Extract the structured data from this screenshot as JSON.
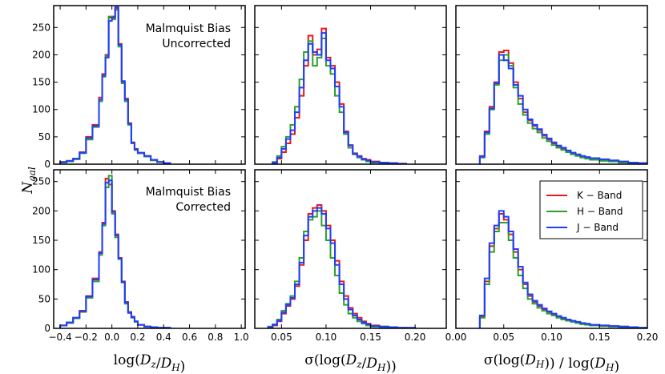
{
  "figure": {
    "ylabel": "N_gal",
    "annotations": {
      "top": [
        "Malmquist Bias",
        "Uncorrected"
      ],
      "bottom": [
        "Malmquist Bias",
        "Corrected"
      ]
    },
    "legend": {
      "placement": "upper-right of bottom-right panel",
      "entries": [
        {
          "label": "K − Band",
          "color": "#e41a1c"
        },
        {
          "label": "H − Band",
          "color": "#2ca02c"
        },
        {
          "label": "J − Band",
          "color": "#1f3dff"
        }
      ]
    }
  },
  "chart_data": [
    {
      "type": "histogram",
      "panel": "top-left",
      "xlabel": "",
      "ylabel": "N_gal",
      "xlim": [
        -0.45,
        1.03
      ],
      "ylim": [
        0,
        290
      ],
      "yticks": [
        0,
        50,
        100,
        150,
        200,
        250
      ],
      "bin_edges": [
        -0.4,
        -0.35,
        -0.3,
        -0.25,
        -0.2,
        -0.15,
        -0.1,
        -0.075,
        -0.05,
        -0.025,
        0.0,
        0.025,
        0.05,
        0.075,
        0.1,
        0.125,
        0.15,
        0.175,
        0.2,
        0.25,
        0.3,
        0.35,
        0.4,
        0.45
      ],
      "series": [
        {
          "name": "K − Band",
          "color": "#e41a1c",
          "values": [
            4,
            6,
            10,
            22,
            50,
            72,
            122,
            165,
            200,
            268,
            270,
            285,
            220,
            150,
            120,
            75,
            40,
            28,
            20,
            15,
            8,
            4,
            2
          ]
        },
        {
          "name": "H − Band",
          "color": "#2ca02c",
          "values": [
            3,
            5,
            9,
            20,
            45,
            68,
            115,
            160,
            198,
            270,
            265,
            282,
            215,
            148,
            115,
            72,
            38,
            26,
            20,
            14,
            7,
            4,
            2
          ]
        },
        {
          "name": "J − Band",
          "color": "#1f3dff",
          "values": [
            4,
            6,
            10,
            21,
            48,
            70,
            118,
            162,
            195,
            262,
            268,
            287,
            218,
            152,
            118,
            74,
            39,
            27,
            21,
            15,
            8,
            4,
            2
          ]
        }
      ]
    },
    {
      "type": "histogram",
      "panel": "top-middle",
      "xlabel": "",
      "ylabel": "",
      "xlim": [
        0.02,
        0.235
      ],
      "ylim": [
        0,
        290
      ],
      "bin_edges": [
        0.04,
        0.045,
        0.05,
        0.055,
        0.06,
        0.065,
        0.07,
        0.075,
        0.08,
        0.085,
        0.09,
        0.095,
        0.1,
        0.105,
        0.11,
        0.115,
        0.12,
        0.125,
        0.13,
        0.135,
        0.14,
        0.145,
        0.15,
        0.16,
        0.17,
        0.18,
        0.19
      ],
      "series": [
        {
          "name": "K − Band",
          "color": "#e41a1c",
          "values": [
            2,
            10,
            22,
            38,
            55,
            85,
            125,
            180,
            235,
            200,
            210,
            248,
            195,
            180,
            150,
            110,
            60,
            35,
            20,
            15,
            10,
            8,
            5,
            3,
            2,
            1
          ]
        },
        {
          "name": "H − Band",
          "color": "#2ca02c",
          "values": [
            4,
            15,
            32,
            50,
            72,
            105,
            155,
            205,
            225,
            180,
            195,
            230,
            180,
            165,
            125,
            95,
            55,
            30,
            18,
            12,
            8,
            5,
            3,
            2,
            1,
            0
          ]
        },
        {
          "name": "J − Band",
          "color": "#1f3dff",
          "values": [
            3,
            12,
            28,
            46,
            62,
            95,
            140,
            190,
            220,
            205,
            200,
            240,
            190,
            175,
            142,
            105,
            58,
            34,
            19,
            14,
            9,
            7,
            4,
            3,
            2,
            1
          ]
        }
      ]
    },
    {
      "type": "histogram",
      "panel": "top-right",
      "xlabel": "",
      "ylabel": "",
      "xlim": [
        0.0,
        0.2
      ],
      "ylim": [
        0,
        290
      ],
      "bin_edges": [
        0.025,
        0.03,
        0.035,
        0.04,
        0.045,
        0.05,
        0.055,
        0.06,
        0.065,
        0.07,
        0.075,
        0.08,
        0.085,
        0.09,
        0.095,
        0.1,
        0.105,
        0.11,
        0.115,
        0.12,
        0.125,
        0.13,
        0.135,
        0.14,
        0.15,
        0.16,
        0.17,
        0.18,
        0.19,
        0.2
      ],
      "series": [
        {
          "name": "K − Band",
          "color": "#e41a1c",
          "values": [
            15,
            60,
            105,
            150,
            205,
            208,
            185,
            150,
            120,
            95,
            80,
            70,
            62,
            52,
            45,
            38,
            33,
            28,
            24,
            20,
            17,
            14,
            12,
            10,
            8,
            6,
            4,
            3,
            2
          ]
        },
        {
          "name": "H − Band",
          "color": "#2ca02c",
          "values": [
            12,
            55,
            100,
            145,
            190,
            200,
            180,
            140,
            110,
            90,
            75,
            65,
            58,
            48,
            42,
            35,
            30,
            26,
            22,
            18,
            15,
            12,
            10,
            8,
            6,
            5,
            3,
            2,
            1
          ]
        },
        {
          "name": "J − Band",
          "color": "#1f3dff",
          "values": [
            14,
            58,
            102,
            148,
            200,
            190,
            175,
            145,
            125,
            100,
            82,
            72,
            64,
            54,
            47,
            40,
            34,
            30,
            25,
            21,
            18,
            15,
            13,
            11,
            9,
            7,
            5,
            3,
            2
          ]
        }
      ]
    },
    {
      "type": "histogram",
      "panel": "bottom-left",
      "xlabel": "log(D_z/D_H)",
      "ylabel": "N_gal",
      "xlim": [
        -0.45,
        1.03
      ],
      "ylim": [
        0,
        270
      ],
      "xticks": [
        -0.4,
        -0.2,
        0.0,
        0.2,
        0.4,
        0.6,
        0.8,
        1.0
      ],
      "xticklabels": [
        "−0.4",
        "−0.2",
        "0.0",
        "0.2",
        "0.4",
        "0.6",
        "0.8",
        "1.0"
      ],
      "yticks": [
        0,
        50,
        100,
        150,
        200,
        250
      ],
      "bin_edges": [
        -0.4,
        -0.35,
        -0.3,
        -0.25,
        -0.2,
        -0.15,
        -0.1,
        -0.075,
        -0.05,
        -0.025,
        0.0,
        0.025,
        0.05,
        0.075,
        0.1,
        0.125,
        0.15,
        0.175,
        0.2,
        0.25,
        0.3,
        0.35,
        0.4,
        0.45
      ],
      "series": [
        {
          "name": "K − Band",
          "color": "#e41a1c",
          "values": [
            5,
            10,
            18,
            30,
            55,
            85,
            130,
            180,
            255,
            245,
            200,
            160,
            120,
            80,
            45,
            28,
            20,
            12,
            6,
            3,
            2,
            1,
            1
          ]
        },
        {
          "name": "H − Band",
          "color": "#2ca02c",
          "values": [
            5,
            9,
            17,
            28,
            52,
            80,
            125,
            175,
            240,
            260,
            195,
            155,
            118,
            78,
            42,
            26,
            18,
            11,
            6,
            3,
            2,
            1,
            1
          ]
        },
        {
          "name": "J − Band",
          "color": "#1f3dff",
          "values": [
            5,
            10,
            18,
            29,
            54,
            83,
            128,
            178,
            248,
            252,
            198,
            158,
            119,
            79,
            44,
            27,
            19,
            12,
            6,
            3,
            2,
            1,
            1
          ]
        }
      ]
    },
    {
      "type": "histogram",
      "panel": "bottom-middle",
      "xlabel": "σ(log(D_z/D_H))",
      "ylabel": "",
      "xlim": [
        0.02,
        0.235
      ],
      "ylim": [
        0,
        270
      ],
      "xticks": [
        0.05,
        0.1,
        0.15,
        0.2
      ],
      "xticklabels": [
        "0.05",
        "0.10",
        "0.15",
        "0.20"
      ],
      "bin_edges": [
        0.035,
        0.04,
        0.045,
        0.05,
        0.055,
        0.06,
        0.065,
        0.07,
        0.075,
        0.08,
        0.085,
        0.09,
        0.095,
        0.1,
        0.105,
        0.11,
        0.115,
        0.12,
        0.125,
        0.13,
        0.135,
        0.14,
        0.145,
        0.15,
        0.16,
        0.17,
        0.18,
        0.19,
        0.2
      ],
      "series": [
        {
          "name": "K − Band",
          "color": "#e41a1c",
          "values": [
            2,
            5,
            12,
            25,
            38,
            50,
            72,
            108,
            150,
            195,
            205,
            210,
            200,
            175,
            150,
            115,
            80,
            55,
            35,
            25,
            18,
            12,
            8,
            5,
            3,
            2,
            1,
            1
          ]
        },
        {
          "name": "H − Band",
          "color": "#2ca02c",
          "values": [
            3,
            7,
            15,
            30,
            42,
            55,
            80,
            120,
            165,
            185,
            190,
            200,
            175,
            150,
            120,
            90,
            60,
            40,
            25,
            18,
            12,
            8,
            5,
            3,
            2,
            1,
            1,
            0
          ]
        },
        {
          "name": "J − Band",
          "color": "#1f3dff",
          "values": [
            2,
            6,
            13,
            27,
            40,
            52,
            75,
            112,
            158,
            190,
            200,
            205,
            195,
            170,
            145,
            108,
            75,
            50,
            32,
            22,
            15,
            10,
            7,
            4,
            3,
            2,
            1,
            1
          ]
        }
      ]
    },
    {
      "type": "histogram",
      "panel": "bottom-right",
      "xlabel": "σ(log(D_H)) / log(D_H)",
      "ylabel": "",
      "xlim": [
        0.0,
        0.2
      ],
      "ylim": [
        0,
        270
      ],
      "xticks": [
        0.0,
        0.05,
        0.1,
        0.15,
        0.2
      ],
      "xticklabels": [
        "0.00",
        "0.05",
        "0.10",
        "0.15",
        "0.20"
      ],
      "bin_edges": [
        0.025,
        0.03,
        0.035,
        0.04,
        0.045,
        0.05,
        0.055,
        0.06,
        0.065,
        0.07,
        0.075,
        0.08,
        0.085,
        0.09,
        0.095,
        0.1,
        0.105,
        0.11,
        0.115,
        0.12,
        0.125,
        0.13,
        0.135,
        0.14,
        0.15,
        0.16,
        0.17,
        0.18,
        0.19,
        0.2
      ],
      "series": [
        {
          "name": "K − Band",
          "color": "#e41a1c",
          "values": [
            20,
            80,
            140,
            170,
            195,
            185,
            160,
            130,
            100,
            75,
            55,
            45,
            38,
            32,
            28,
            24,
            20,
            17,
            14,
            12,
            10,
            8,
            7,
            6,
            5,
            4,
            3,
            2,
            1
          ]
        },
        {
          "name": "H − Band",
          "color": "#2ca02c",
          "values": [
            18,
            75,
            130,
            165,
            180,
            180,
            150,
            120,
            90,
            68,
            50,
            42,
            35,
            30,
            25,
            22,
            18,
            15,
            13,
            11,
            9,
            7,
            6,
            5,
            4,
            3,
            2,
            2,
            1
          ]
        },
        {
          "name": "J − Band",
          "color": "#1f3dff",
          "values": [
            22,
            85,
            145,
            175,
            200,
            190,
            165,
            135,
            105,
            78,
            58,
            47,
            40,
            34,
            29,
            25,
            21,
            18,
            15,
            13,
            11,
            9,
            8,
            6,
            5,
            4,
            3,
            2,
            1
          ]
        }
      ]
    }
  ]
}
